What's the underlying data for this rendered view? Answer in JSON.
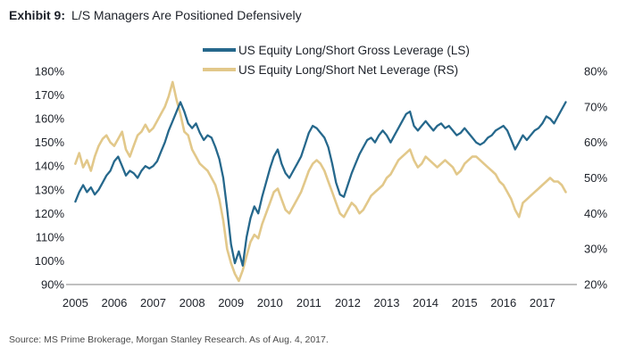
{
  "title": {
    "prefix": "Exhibit 9:",
    "text": "L/S Managers Are Positioned Defensively"
  },
  "source": "Source: MS Prime Brokerage, Morgan Stanley Research. As of Aug. 4, 2017.",
  "chart_data": {
    "type": "line",
    "title": "Exhibit 9: L/S Managers Are Positioned Defensively",
    "legend_position": "top-center",
    "grid": false,
    "x_axis": {
      "ticks": [
        2005,
        2006,
        2007,
        2008,
        2009,
        2010,
        2011,
        2012,
        2013,
        2014,
        2015,
        2016,
        2017
      ],
      "domain": [
        2004.9,
        2017.75
      ]
    },
    "left_axis": {
      "min": 90,
      "max": 180,
      "suffix": "%",
      "tick_values": [
        180,
        170,
        160,
        150,
        140,
        130,
        120,
        110,
        100,
        90
      ]
    },
    "right_axis": {
      "min": 20,
      "max": 80,
      "suffix": "%",
      "tick_values": [
        80,
        70,
        60,
        50,
        40,
        30,
        20
      ]
    },
    "x_start": 2005.0,
    "x_step": 0.1,
    "axis_line_color": "#9a9a9a",
    "tick_label_color": "#1d2129",
    "series": [
      {
        "name": "US Equity Long/Short Gross Leverage (LS)",
        "axis": "left",
        "color": "#26688c",
        "stroke_width": 2.3,
        "values": [
          125,
          129,
          132,
          129,
          131,
          128,
          130,
          133,
          136,
          138,
          142,
          144,
          140,
          136,
          138,
          137,
          135,
          138,
          140,
          139,
          140,
          142,
          146,
          150,
          155,
          159,
          163,
          167,
          163,
          158,
          156,
          158,
          154,
          151,
          153,
          152,
          148,
          143,
          135,
          122,
          107,
          99,
          104,
          98,
          110,
          118,
          123,
          120,
          127,
          133,
          139,
          144,
          147,
          141,
          137,
          135,
          138,
          141,
          144,
          149,
          154,
          157,
          156,
          154,
          152,
          148,
          141,
          133,
          128,
          127,
          132,
          137,
          141,
          145,
          148,
          151,
          152,
          150,
          153,
          155,
          153,
          150,
          153,
          156,
          159,
          162,
          163,
          157,
          155,
          157,
          159,
          157,
          155,
          157,
          158,
          156,
          157,
          155,
          153,
          154,
          156,
          154,
          152,
          150,
          149,
          150,
          152,
          153,
          155,
          156,
          157,
          155,
          151,
          147,
          150,
          153,
          151,
          153,
          155,
          156,
          158,
          161,
          160,
          158,
          161,
          164,
          167
        ]
      },
      {
        "name": "US Equity Long/Short Net Leverage (RS)",
        "axis": "right",
        "color": "#e2c88a",
        "stroke_width": 2.6,
        "values": [
          54,
          57,
          53,
          55,
          52,
          56,
          59,
          61,
          62,
          60,
          59,
          61,
          63,
          58,
          56,
          59,
          62,
          63,
          65,
          63,
          64,
          66,
          68,
          70,
          73,
          77,
          72,
          68,
          63,
          62,
          58,
          56,
          54,
          53,
          52,
          50,
          48,
          44,
          38,
          30,
          26,
          23,
          21,
          24,
          28,
          32,
          34,
          33,
          37,
          40,
          43,
          46,
          47,
          44,
          41,
          40,
          42,
          44,
          46,
          49,
          52,
          54,
          55,
          54,
          52,
          49,
          46,
          43,
          40,
          39,
          41,
          43,
          42,
          40,
          41,
          43,
          45,
          46,
          47,
          48,
          50,
          51,
          53,
          55,
          56,
          57,
          58,
          55,
          53,
          54,
          56,
          55,
          54,
          53,
          54,
          55,
          54,
          53,
          51,
          52,
          54,
          55,
          56,
          56,
          55,
          54,
          53,
          52,
          51,
          49,
          48,
          46,
          44,
          41,
          39,
          43,
          44,
          45,
          46,
          47,
          48,
          49,
          50,
          49,
          49,
          48,
          46
        ]
      }
    ]
  }
}
